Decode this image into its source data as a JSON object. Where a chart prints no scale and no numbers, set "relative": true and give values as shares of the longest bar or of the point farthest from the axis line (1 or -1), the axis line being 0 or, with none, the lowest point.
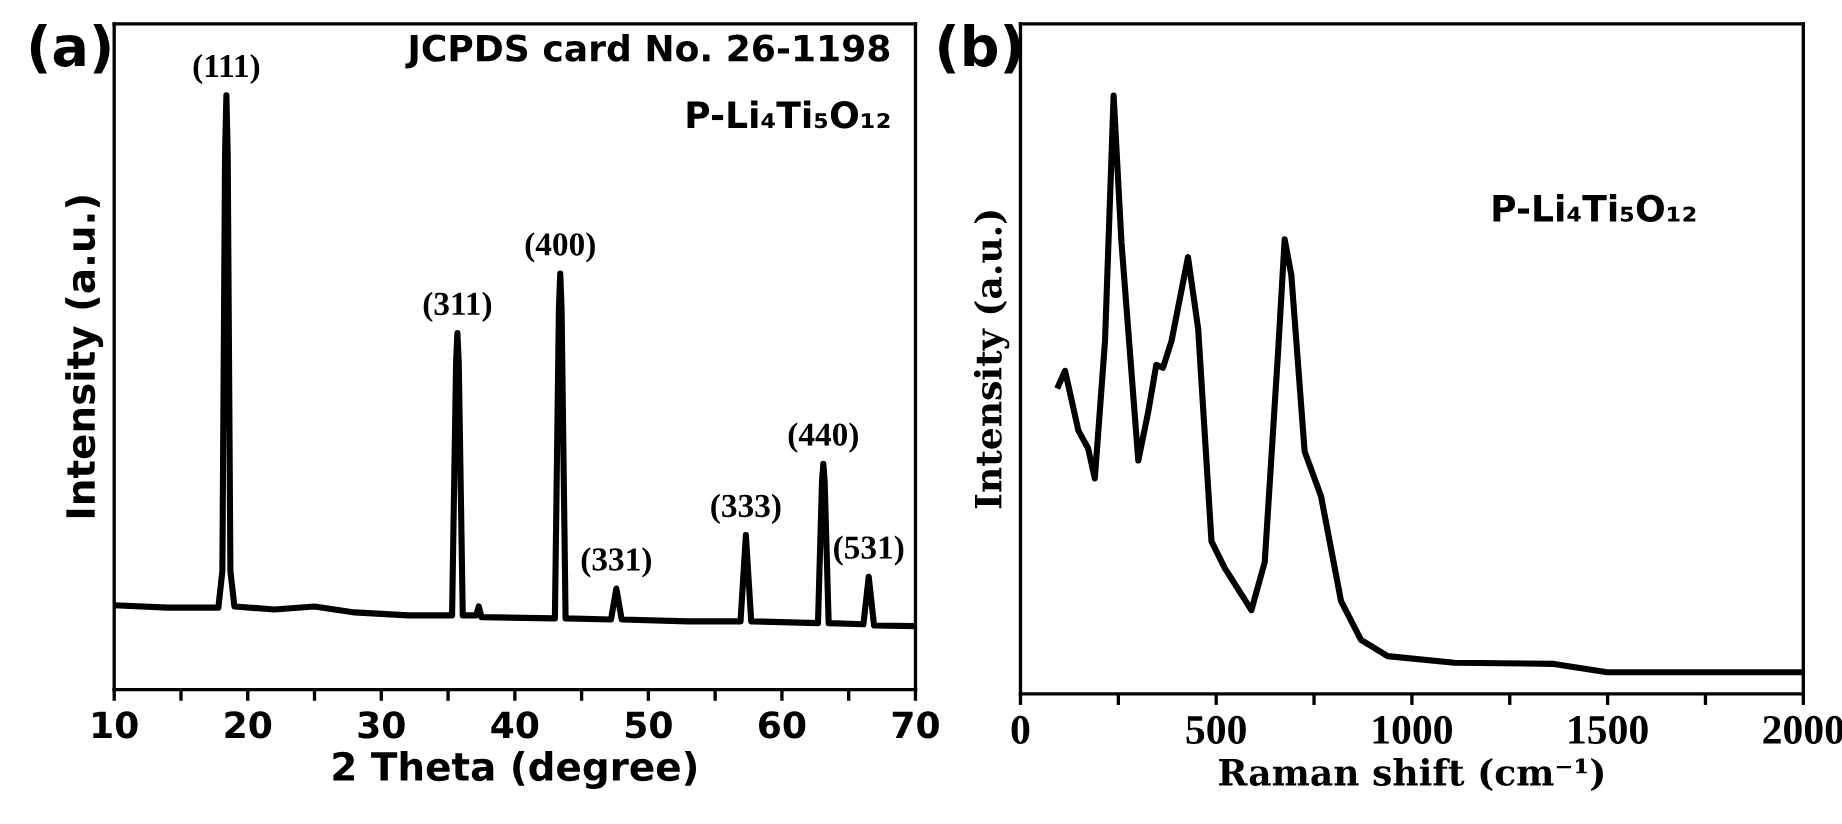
{
  "chart_data": [
    {
      "type": "line",
      "relative": true,
      "color": "#000000",
      "xlabel": "2 Theta (degree)",
      "ylabel": "Intensity (a.u.)",
      "xlim": [
        10,
        70
      ],
      "xticks": [
        10,
        {
          "value": 15,
          "label": null
        },
        20,
        {
          "value": 25,
          "label": null
        },
        30,
        {
          "value": 35,
          "label": null
        },
        40,
        {
          "value": 45,
          "label": null
        },
        50,
        {
          "value": 55,
          "label": null
        },
        60,
        {
          "value": 65,
          "label": null
        },
        70
      ],
      "x": [
        10,
        14,
        17.8,
        18.1,
        18.3,
        18.4,
        18.5,
        18.7,
        19.0,
        22,
        25,
        28,
        32,
        35.3,
        35.6,
        35.7,
        35.8,
        36.1,
        37.1,
        37.3,
        37.5,
        43.0,
        43.3,
        43.4,
        43.5,
        43.8,
        47.2,
        47.6,
        48.0,
        53,
        56.9,
        57.3,
        57.7,
        62.7,
        63.0,
        63.1,
        63.2,
        63.5,
        66.1,
        66.5,
        66.9,
        70
      ],
      "values": [
        0.142,
        0.138,
        0.138,
        0.2,
        0.9,
        1.0,
        0.9,
        0.2,
        0.14,
        0.135,
        0.14,
        0.13,
        0.125,
        0.125,
        0.55,
        0.6,
        0.55,
        0.125,
        0.125,
        0.14,
        0.122,
        0.12,
        0.64,
        0.7,
        0.64,
        0.12,
        0.118,
        0.17,
        0.118,
        0.115,
        0.115,
        0.26,
        0.115,
        0.112,
        0.35,
        0.38,
        0.35,
        0.112,
        0.11,
        0.19,
        0.108,
        0.107
      ],
      "annotations": [
        "(a)",
        "JCPDS card No. 26-1198",
        "P-Li₄Ti₅O₁₂",
        {
          "text": "(111)",
          "x": 18.4,
          "y": 1.0
        },
        {
          "text": "(311)",
          "x": 35.7,
          "y": 0.6
        },
        {
          "text": "(400)",
          "x": 43.4,
          "y": 0.7
        },
        {
          "text": "(331)",
          "x": 47.6,
          "y": 0.17
        },
        {
          "text": "(333)",
          "x": 57.3,
          "y": 0.26
        },
        {
          "text": "(440)",
          "x": 63.1,
          "y": 0.38
        },
        {
          "text": "(531)",
          "x": 66.5,
          "y": 0.19
        }
      ]
    },
    {
      "type": "line",
      "relative": true,
      "color": "#000000",
      "xlabel": "Raman shift (cm⁻¹)",
      "ylabel": "Intensity (a.u.)",
      "xlim": [
        0,
        2000
      ],
      "xticks": [
        0,
        {
          "value": 250,
          "label": null
        },
        500,
        {
          "value": 750,
          "label": null
        },
        1000,
        {
          "value": 1250,
          "label": null
        },
        1500,
        {
          "value": 1750,
          "label": null
        },
        2000
      ],
      "x": [
        97,
        114,
        148,
        173,
        190,
        216,
        238,
        258,
        301,
        326,
        347,
        364,
        386,
        428,
        454,
        488,
        522,
        590,
        624,
        658,
        675,
        692,
        726,
        768,
        819,
        870,
        938,
        1108,
        1363,
        1499,
        2000
      ],
      "values": [
        0.515,
        0.54,
        0.44,
        0.41,
        0.36,
        0.59,
        1.0,
        0.755,
        0.39,
        0.47,
        0.55,
        0.545,
        0.59,
        0.73,
        0.61,
        0.255,
        0.21,
        0.14,
        0.22,
        0.57,
        0.76,
        0.7,
        0.405,
        0.33,
        0.155,
        0.09,
        0.063,
        0.052,
        0.05,
        0.036,
        0.036
      ],
      "annotations": [
        "(b)",
        "P-Li₄Ti₅O₁₂"
      ]
    }
  ]
}
